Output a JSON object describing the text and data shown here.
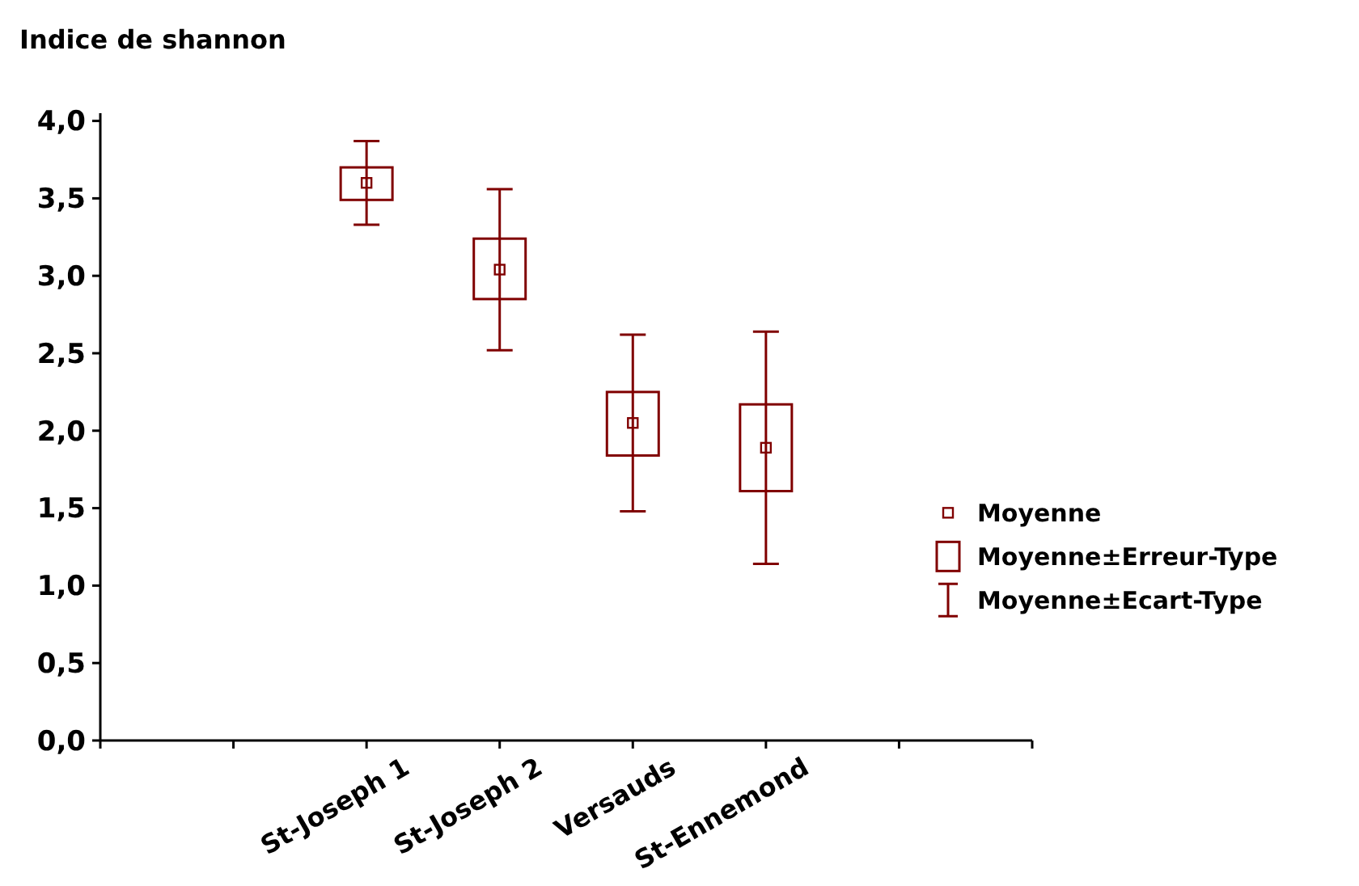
{
  "chart_data": {
    "type": "bar",
    "ylabel": "Indice de shannon",
    "categories": [
      "St-Joseph 1",
      "St-Joseph 2",
      "Versauds",
      "St-Ennemond"
    ],
    "series": [
      {
        "name": "Moyenne",
        "type": "scatter",
        "marker": "square",
        "color": "#800000",
        "values": [
          3.6,
          3.04,
          2.05,
          1.89
        ],
        "errors": [
          0.27,
          0.52,
          0.57,
          0.75
        ]
      },
      {
        "name": "Moyenne±Erreur-Type",
        "color": "#800000",
        "base": [
          3.49,
          2.85,
          1.84,
          1.61
        ],
        "values": [
          0.21,
          0.39,
          0.41,
          0.56
        ]
      }
    ],
    "ylim": [
      0,
      4.05
    ],
    "yticks": [
      {
        "value": 0,
        "label": "0,0"
      },
      {
        "value": 0.5,
        "label": "0,5"
      },
      {
        "value": 1,
        "label": "1,0"
      },
      {
        "value": 1.5,
        "label": "1,5"
      },
      {
        "value": 2,
        "label": "2,0"
      },
      {
        "value": 2.5,
        "label": "2,5"
      },
      {
        "value": 3,
        "label": "3,0"
      },
      {
        "value": 3.5,
        "label": "3,5"
      },
      {
        "value": 4,
        "label": "4,0"
      }
    ],
    "grid": false,
    "legend": "right",
    "annotations": [
      "Moyenne±Ecart-Type"
    ]
  }
}
